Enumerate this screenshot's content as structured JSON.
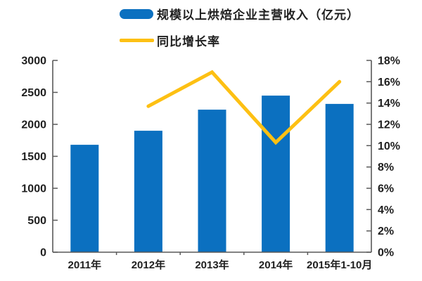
{
  "page": {
    "background": "#ffffff"
  },
  "legend": {
    "position": "top-left",
    "items": [
      {
        "label": "规模以上烘焙企业主营收入（亿元）",
        "swatch": "bar",
        "color": "#0b70c0"
      },
      {
        "label": "同比增长率",
        "swatch": "line",
        "color": "#fdc013"
      }
    ]
  },
  "chart_data": {
    "type": "bar",
    "overlay": "line",
    "categories": [
      "2011年",
      "2012年",
      "2013年",
      "2014年",
      "2015年1-10月"
    ],
    "series": [
      {
        "name": "规模以上烘焙企业主营收入（亿元）",
        "type": "bar",
        "axis": "left",
        "color": "#0b70c0",
        "values": [
          1680,
          1900,
          2230,
          2450,
          2320
        ]
      },
      {
        "name": "同比增长率",
        "type": "line",
        "axis": "right",
        "color": "#fdc013",
        "values": [
          null,
          13.7,
          16.9,
          10.3,
          16.0
        ]
      }
    ],
    "left_axis": {
      "min": 0,
      "max": 3000,
      "step": 500,
      "tick_values": [
        0,
        500,
        1000,
        1500,
        2000,
        2500,
        3000
      ],
      "tick_labels": [
        "0",
        "500",
        "1000",
        "1500",
        "2000",
        "2500",
        "3000"
      ]
    },
    "right_axis": {
      "min": 0,
      "max": 18,
      "step": 2,
      "tick_values": [
        0,
        2,
        4,
        6,
        8,
        10,
        12,
        14,
        16,
        18
      ],
      "tick_labels": [
        "0%",
        "2%",
        "4%",
        "6%",
        "8%",
        "10%",
        "12%",
        "14%",
        "16%",
        "18%"
      ]
    },
    "grid": false,
    "axis_color": "#595959",
    "label_color": "#1f1f1f"
  }
}
